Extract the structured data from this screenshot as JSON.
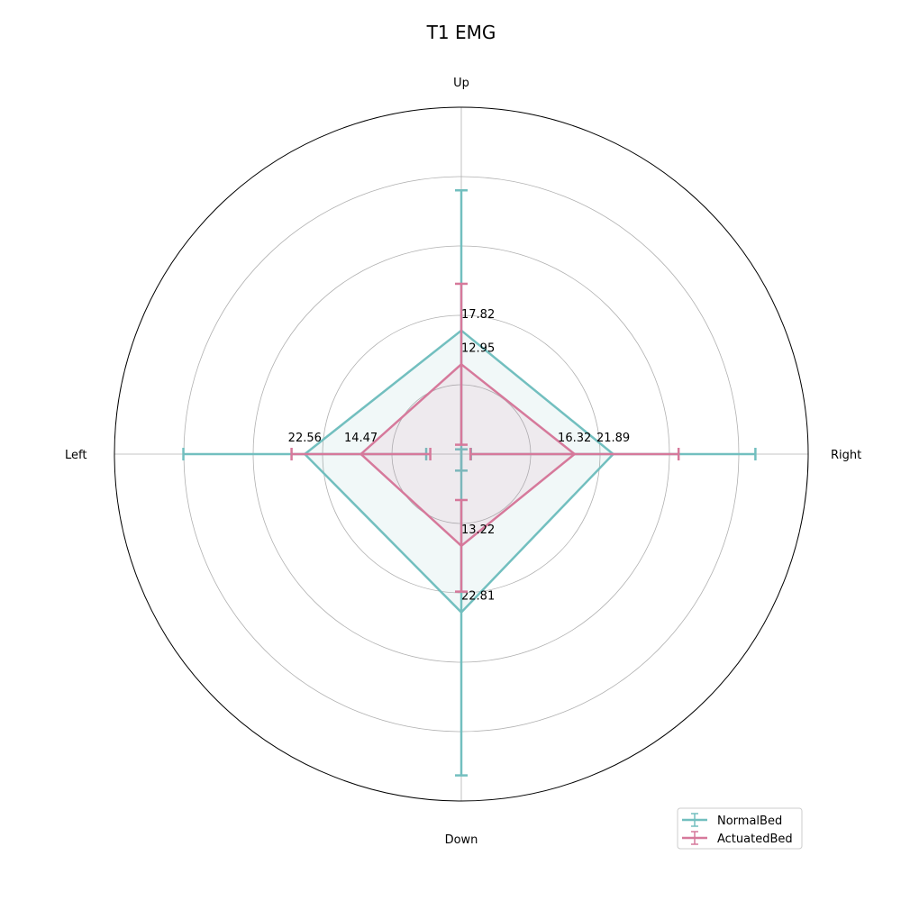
{
  "chart_data": {
    "type": "radar",
    "title": "T1 EMG",
    "categories": [
      "Up",
      "Right",
      "Down",
      "Left"
    ],
    "rlim": [
      0,
      50
    ],
    "rgrid": [
      10,
      20,
      30,
      40
    ],
    "grid": true,
    "legend_position": "bottom-right",
    "series": [
      {
        "name": "NormalBed",
        "color": "#72bfbf",
        "values": [
          17.82,
          21.89,
          22.81,
          22.56
        ],
        "error": [
          20.2,
          20.5,
          23.5,
          17.5
        ]
      },
      {
        "name": "ActuatedBed",
        "color": "#d6799b",
        "values": [
          12.95,
          16.32,
          13.22,
          14.47
        ],
        "error": [
          11.6,
          15.0,
          6.6,
          10.0
        ]
      }
    ]
  }
}
